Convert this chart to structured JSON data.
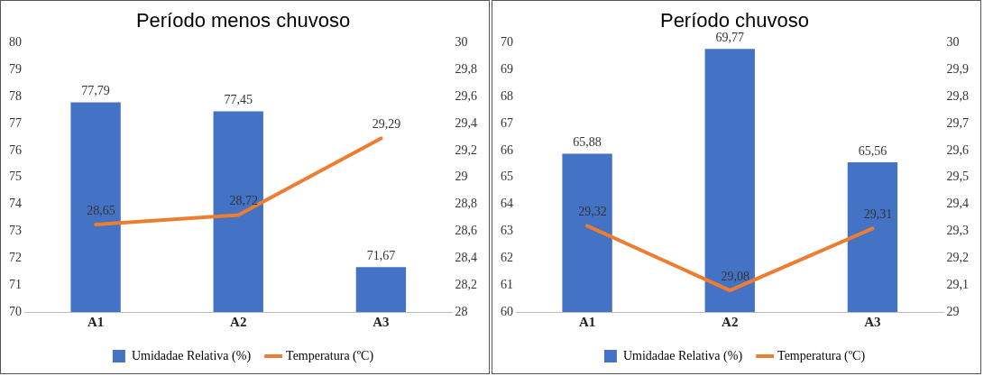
{
  "chart_data": [
    {
      "type": "bar",
      "title": "Período menos chuvoso",
      "categories": [
        "A1",
        "A2",
        "A3"
      ],
      "legend": "bottom",
      "grid": false,
      "ylim": [
        70,
        80
      ],
      "yticks": [
        70,
        71,
        72,
        73,
        74,
        75,
        76,
        77,
        78,
        79,
        80
      ],
      "y2lim": [
        28,
        30
      ],
      "y2ticks": [
        28,
        {
          "value": 28.2,
          "label": "28,2"
        },
        {
          "value": 28.4,
          "label": "28,4"
        },
        {
          "value": 28.6,
          "label": "28,6"
        },
        {
          "value": 28.8,
          "label": "28,8"
        },
        29,
        {
          "value": 29.2,
          "label": "29,2"
        },
        {
          "value": 29.4,
          "label": "29,4"
        },
        {
          "value": 29.6,
          "label": "29,6"
        },
        {
          "value": 29.8,
          "label": "29,8"
        },
        30
      ],
      "series": [
        {
          "name": "Umidadae Relativa (%)",
          "color": "#4472c4",
          "values": [
            77.79,
            77.45,
            71.67
          ],
          "value_labels": [
            "77,79",
            "77,45",
            "71,67"
          ]
        },
        {
          "name": "Temperatura (ºC)",
          "type": "line",
          "axis": "y2",
          "color": "#ed7d31",
          "values": [
            28.65,
            28.72,
            29.29
          ],
          "value_labels": [
            "28,65",
            "28,72",
            "29,29"
          ]
        }
      ]
    },
    {
      "type": "bar",
      "title": "Período chuvoso",
      "categories": [
        "A1",
        "A2",
        "A3"
      ],
      "legend": "bottom",
      "grid": false,
      "ylim": [
        60,
        70
      ],
      "yticks": [
        60,
        61,
        62,
        63,
        64,
        65,
        66,
        67,
        68,
        69,
        70
      ],
      "y2lim": [
        29,
        30
      ],
      "y2ticks": [
        29,
        {
          "value": 29.1,
          "label": "29,1"
        },
        {
          "value": 29.2,
          "label": "29,2"
        },
        {
          "value": 29.3,
          "label": "29,3"
        },
        {
          "value": 29.4,
          "label": "29,4"
        },
        {
          "value": 29.5,
          "label": "29,5"
        },
        {
          "value": 29.6,
          "label": "29,6"
        },
        {
          "value": 29.7,
          "label": "29,7"
        },
        {
          "value": 29.8,
          "label": "29,8"
        },
        {
          "value": 29.9,
          "label": "29,9"
        },
        30
      ],
      "series": [
        {
          "name": "Umidadae Relativa (%)",
          "color": "#4472c4",
          "values": [
            65.88,
            69.77,
            65.56
          ],
          "value_labels": [
            "65,88",
            "69,77",
            "65,56"
          ]
        },
        {
          "name": "Temperatura (ºC)",
          "type": "line",
          "axis": "y2",
          "color": "#ed7d31",
          "values": [
            29.32,
            29.08,
            29.31
          ],
          "value_labels": [
            "29,32",
            "29,08",
            "29,31"
          ]
        }
      ]
    }
  ]
}
